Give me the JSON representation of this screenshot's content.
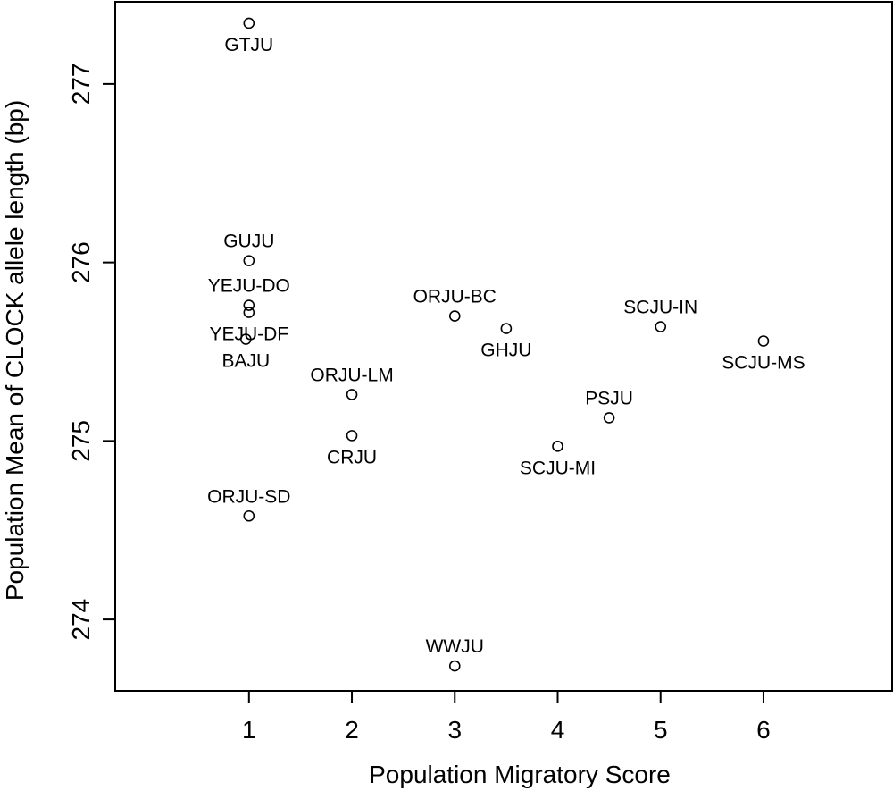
{
  "chart_data": {
    "type": "scatter",
    "xlabel": "Population Migratory Score",
    "ylabel": "Population Mean of CLOCK allele length (bp)",
    "xlim": [
      -0.3,
      7.25
    ],
    "ylim": [
      273.6,
      277.46
    ],
    "x_ticks": [
      "1",
      "2",
      "3",
      "4",
      "5",
      "6"
    ],
    "y_ticks": [
      "274",
      "275",
      "276",
      "277"
    ],
    "grid": false,
    "points": [
      {
        "name": "GTJU",
        "x": 1.0,
        "y": 277.34,
        "label_pos": "below"
      },
      {
        "name": "GUJU",
        "x": 1.0,
        "y": 276.01,
        "label_pos": "above"
      },
      {
        "name": "YEJU-DO",
        "x": 1.0,
        "y": 275.76,
        "label_pos": "above"
      },
      {
        "name": "YEJU-DF",
        "x": 1.0,
        "y": 275.72,
        "label_pos": "below"
      },
      {
        "name": "BAJU",
        "x": 0.97,
        "y": 275.57,
        "label_pos": "below"
      },
      {
        "name": "ORJU-SD",
        "x": 1.0,
        "y": 274.58,
        "label_pos": "above"
      },
      {
        "name": "ORJU-LM",
        "x": 2.0,
        "y": 275.26,
        "label_pos": "above"
      },
      {
        "name": "CRJU",
        "x": 2.0,
        "y": 275.03,
        "label_pos": "below"
      },
      {
        "name": "ORJU-BC",
        "x": 3.0,
        "y": 275.7,
        "label_pos": "above"
      },
      {
        "name": "WWJU",
        "x": 3.0,
        "y": 273.74,
        "label_pos": "above"
      },
      {
        "name": "GHJU",
        "x": 3.5,
        "y": 275.63,
        "label_pos": "below"
      },
      {
        "name": "SCJU-MI",
        "x": 4.0,
        "y": 274.97,
        "label_pos": "below"
      },
      {
        "name": "PSJU",
        "x": 4.5,
        "y": 275.13,
        "label_pos": "above"
      },
      {
        "name": "SCJU-IN",
        "x": 5.0,
        "y": 275.64,
        "label_pos": "above"
      },
      {
        "name": "SCJU-MS",
        "x": 6.0,
        "y": 275.56,
        "label_pos": "below"
      }
    ]
  }
}
